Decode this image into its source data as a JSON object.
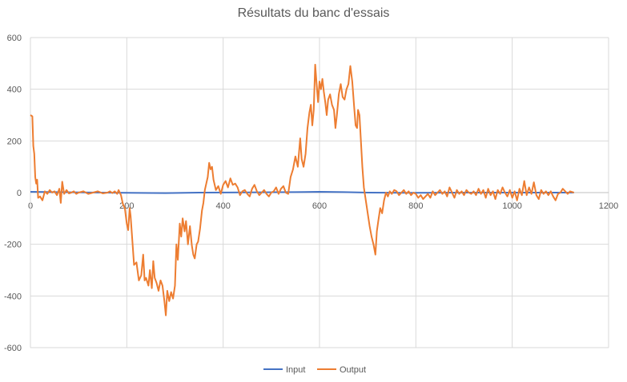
{
  "chart_data": {
    "type": "line",
    "title": "Résultats du banc d'essais",
    "xlabel": "",
    "ylabel": "",
    "xlim": [
      0,
      1200
    ],
    "ylim": [
      -600,
      600
    ],
    "x_ticks": [
      "0",
      "200",
      "400",
      "600",
      "800",
      "1000",
      "1200"
    ],
    "y_ticks": [
      "600",
      "400",
      "200",
      "0",
      "-200",
      "-400",
      "-600"
    ],
    "grid": true,
    "legend_position": "bottom",
    "series": [
      {
        "name": "Input",
        "color": "#4472C4",
        "points": [
          [
            0,
            3
          ],
          [
            100,
            1
          ],
          [
            200,
            -1
          ],
          [
            280,
            -2
          ],
          [
            350,
            0
          ],
          [
            450,
            1
          ],
          [
            550,
            2
          ],
          [
            600,
            3
          ],
          [
            650,
            2
          ],
          [
            700,
            0
          ],
          [
            800,
            -1
          ],
          [
            900,
            0
          ],
          [
            1000,
            0
          ],
          [
            1128,
            0
          ]
        ]
      },
      {
        "name": "Output",
        "color": "#ED7D31",
        "points": [
          [
            0,
            300
          ],
          [
            4,
            295
          ],
          [
            6,
            180
          ],
          [
            8,
            150
          ],
          [
            10,
            60
          ],
          [
            12,
            35
          ],
          [
            14,
            50
          ],
          [
            16,
            -20
          ],
          [
            20,
            -15
          ],
          [
            25,
            -30
          ],
          [
            30,
            5
          ],
          [
            35,
            -5
          ],
          [
            40,
            10
          ],
          [
            45,
            0
          ],
          [
            50,
            5
          ],
          [
            55,
            -10
          ],
          [
            60,
            15
          ],
          [
            63,
            -40
          ],
          [
            66,
            42
          ],
          [
            70,
            -5
          ],
          [
            75,
            10
          ],
          [
            80,
            -3
          ],
          [
            85,
            0
          ],
          [
            90,
            5
          ],
          [
            95,
            -5
          ],
          [
            100,
            0
          ],
          [
            110,
            5
          ],
          [
            120,
            -5
          ],
          [
            130,
            0
          ],
          [
            140,
            5
          ],
          [
            150,
            -3
          ],
          [
            160,
            0
          ],
          [
            165,
            5
          ],
          [
            170,
            -2
          ],
          [
            175,
            5
          ],
          [
            180,
            -5
          ],
          [
            183,
            10
          ],
          [
            188,
            -10
          ],
          [
            192,
            -45
          ],
          [
            196,
            -60
          ],
          [
            200,
            -120
          ],
          [
            203,
            -145
          ],
          [
            206,
            -60
          ],
          [
            208,
            -90
          ],
          [
            212,
            -200
          ],
          [
            215,
            -280
          ],
          [
            220,
            -270
          ],
          [
            225,
            -340
          ],
          [
            230,
            -320
          ],
          [
            234,
            -240
          ],
          [
            237,
            -340
          ],
          [
            240,
            -330
          ],
          [
            245,
            -360
          ],
          [
            248,
            -300
          ],
          [
            252,
            -370
          ],
          [
            255,
            -265
          ],
          [
            258,
            -330
          ],
          [
            262,
            -350
          ],
          [
            266,
            -380
          ],
          [
            270,
            -340
          ],
          [
            274,
            -360
          ],
          [
            278,
            -420
          ],
          [
            281,
            -475
          ],
          [
            284,
            -380
          ],
          [
            288,
            -420
          ],
          [
            292,
            -385
          ],
          [
            296,
            -410
          ],
          [
            300,
            -360
          ],
          [
            303,
            -200
          ],
          [
            306,
            -260
          ],
          [
            310,
            -120
          ],
          [
            313,
            -170
          ],
          [
            316,
            -100
          ],
          [
            320,
            -150
          ],
          [
            323,
            -110
          ],
          [
            327,
            -200
          ],
          [
            331,
            -130
          ],
          [
            335,
            -205
          ],
          [
            338,
            -240
          ],
          [
            341,
            -255
          ],
          [
            345,
            -200
          ],
          [
            348,
            -190
          ],
          [
            352,
            -140
          ],
          [
            356,
            -70
          ],
          [
            359,
            -40
          ],
          [
            362,
            10
          ],
          [
            365,
            35
          ],
          [
            368,
            60
          ],
          [
            371,
            115
          ],
          [
            374,
            90
          ],
          [
            377,
            100
          ],
          [
            380,
            50
          ],
          [
            385,
            10
          ],
          [
            390,
            25
          ],
          [
            395,
            -5
          ],
          [
            400,
            30
          ],
          [
            405,
            45
          ],
          [
            410,
            20
          ],
          [
            415,
            55
          ],
          [
            420,
            30
          ],
          [
            425,
            35
          ],
          [
            430,
            20
          ],
          [
            435,
            -10
          ],
          [
            440,
            5
          ],
          [
            445,
            10
          ],
          [
            450,
            -5
          ],
          [
            455,
            -15
          ],
          [
            460,
            15
          ],
          [
            465,
            30
          ],
          [
            470,
            5
          ],
          [
            475,
            -10
          ],
          [
            480,
            0
          ],
          [
            485,
            10
          ],
          [
            490,
            -5
          ],
          [
            495,
            -15
          ],
          [
            500,
            0
          ],
          [
            505,
            5
          ],
          [
            510,
            20
          ],
          [
            515,
            -5
          ],
          [
            520,
            15
          ],
          [
            525,
            25
          ],
          [
            530,
            0
          ],
          [
            535,
            -5
          ],
          [
            540,
            60
          ],
          [
            545,
            90
          ],
          [
            550,
            140
          ],
          [
            555,
            100
          ],
          [
            560,
            210
          ],
          [
            563,
            130
          ],
          [
            567,
            100
          ],
          [
            571,
            150
          ],
          [
            575,
            250
          ],
          [
            579,
            310
          ],
          [
            582,
            340
          ],
          [
            585,
            260
          ],
          [
            588,
            320
          ],
          [
            591,
            495
          ],
          [
            594,
            420
          ],
          [
            597,
            350
          ],
          [
            600,
            430
          ],
          [
            603,
            400
          ],
          [
            606,
            440
          ],
          [
            609,
            390
          ],
          [
            612,
            350
          ],
          [
            615,
            300
          ],
          [
            618,
            360
          ],
          [
            622,
            380
          ],
          [
            626,
            340
          ],
          [
            630,
            320
          ],
          [
            633,
            250
          ],
          [
            636,
            300
          ],
          [
            640,
            380
          ],
          [
            644,
            420
          ],
          [
            648,
            370
          ],
          [
            652,
            360
          ],
          [
            656,
            400
          ],
          [
            660,
            420
          ],
          [
            664,
            490
          ],
          [
            668,
            430
          ],
          [
            672,
            330
          ],
          [
            675,
            260
          ],
          [
            678,
            250
          ],
          [
            680,
            320
          ],
          [
            683,
            300
          ],
          [
            686,
            200
          ],
          [
            689,
            100
          ],
          [
            692,
            20
          ],
          [
            696,
            -30
          ],
          [
            700,
            -80
          ],
          [
            704,
            -130
          ],
          [
            708,
            -170
          ],
          [
            712,
            -200
          ],
          [
            716,
            -240
          ],
          [
            719,
            -150
          ],
          [
            722,
            -110
          ],
          [
            726,
            -60
          ],
          [
            730,
            -80
          ],
          [
            734,
            -30
          ],
          [
            738,
            0
          ],
          [
            742,
            -15
          ],
          [
            746,
            5
          ],
          [
            750,
            -5
          ],
          [
            755,
            10
          ],
          [
            760,
            5
          ],
          [
            765,
            -10
          ],
          [
            770,
            0
          ],
          [
            775,
            10
          ],
          [
            780,
            -5
          ],
          [
            785,
            5
          ],
          [
            790,
            -10
          ],
          [
            795,
            0
          ],
          [
            800,
            -5
          ],
          [
            805,
            -20
          ],
          [
            810,
            -10
          ],
          [
            815,
            -25
          ],
          [
            820,
            -15
          ],
          [
            825,
            -5
          ],
          [
            830,
            -20
          ],
          [
            835,
            5
          ],
          [
            840,
            -10
          ],
          [
            845,
            0
          ],
          [
            850,
            10
          ],
          [
            855,
            -5
          ],
          [
            860,
            5
          ],
          [
            865,
            -15
          ],
          [
            870,
            20
          ],
          [
            875,
            0
          ],
          [
            880,
            -20
          ],
          [
            885,
            10
          ],
          [
            890,
            -5
          ],
          [
            895,
            5
          ],
          [
            900,
            -10
          ],
          [
            905,
            10
          ],
          [
            910,
            0
          ],
          [
            915,
            -5
          ],
          [
            920,
            5
          ],
          [
            925,
            -10
          ],
          [
            930,
            15
          ],
          [
            935,
            -5
          ],
          [
            940,
            10
          ],
          [
            945,
            -20
          ],
          [
            950,
            15
          ],
          [
            955,
            -10
          ],
          [
            960,
            5
          ],
          [
            965,
            -25
          ],
          [
            970,
            10
          ],
          [
            975,
            -5
          ],
          [
            980,
            20
          ],
          [
            985,
            0
          ],
          [
            990,
            -15
          ],
          [
            995,
            10
          ],
          [
            1000,
            -20
          ],
          [
            1005,
            5
          ],
          [
            1010,
            -30
          ],
          [
            1015,
            15
          ],
          [
            1020,
            -10
          ],
          [
            1025,
            45
          ],
          [
            1030,
            -10
          ],
          [
            1035,
            20
          ],
          [
            1040,
            -5
          ],
          [
            1045,
            40
          ],
          [
            1050,
            -10
          ],
          [
            1055,
            -25
          ],
          [
            1060,
            10
          ],
          [
            1065,
            -5
          ],
          [
            1070,
            5
          ],
          [
            1075,
            -10
          ],
          [
            1080,
            5
          ],
          [
            1085,
            -15
          ],
          [
            1090,
            -30
          ],
          [
            1095,
            -5
          ],
          [
            1100,
            0
          ],
          [
            1105,
            15
          ],
          [
            1110,
            5
          ],
          [
            1115,
            -5
          ],
          [
            1120,
            5
          ],
          [
            1128,
            0
          ]
        ]
      }
    ]
  }
}
